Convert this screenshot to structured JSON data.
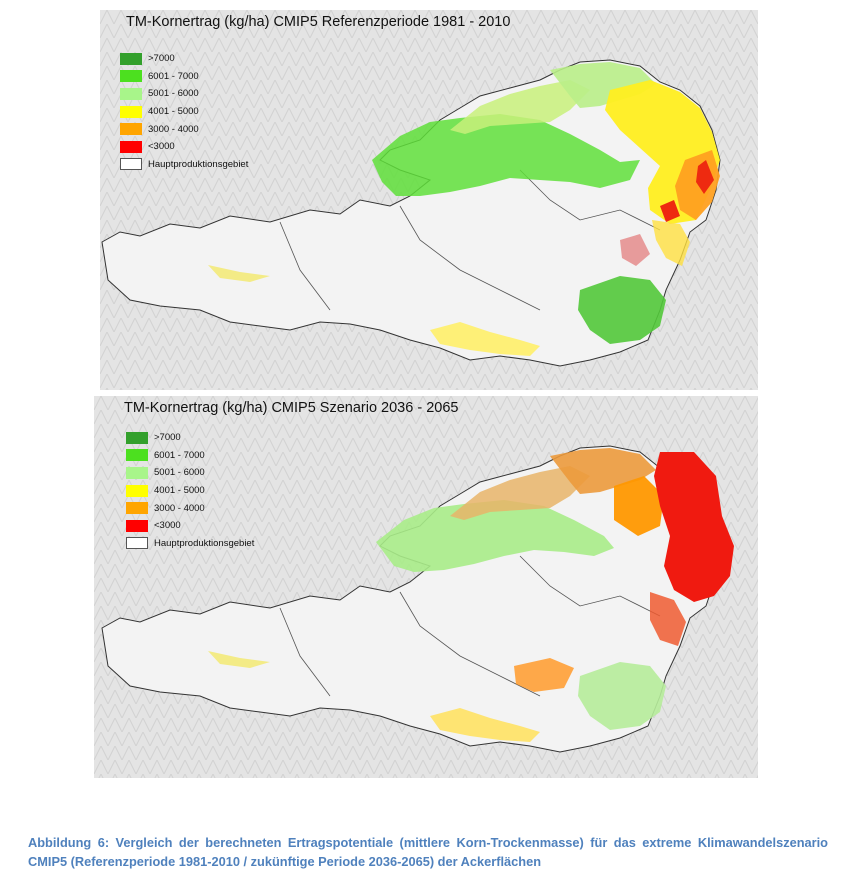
{
  "maps": [
    {
      "title": "TM-Kornertrag (kg/ha) CMIP5 Referenzperiode 1981 - 2010",
      "legend": [
        {
          "label": ">7000",
          "color": "#33a02c"
        },
        {
          "label": "6001 - 7000",
          "color": "#4ce01f"
        },
        {
          "label": "5001 - 6000",
          "color": "#a8f58a"
        },
        {
          "label": "4001 - 5000",
          "color": "#ffff00"
        },
        {
          "label": "3000 - 4000",
          "color": "#ffa500"
        },
        {
          "label": "<3000",
          "color": "#ff0000"
        },
        {
          "label": "Hauptproduktionsgebiet",
          "color": "#ffffff"
        }
      ]
    },
    {
      "title": "TM-Kornertrag (kg/ha) CMIP5 Szenario 2036 - 2065",
      "legend": [
        {
          "label": ">7000",
          "color": "#33a02c"
        },
        {
          "label": "6001 - 7000",
          "color": "#4ce01f"
        },
        {
          "label": "5001 - 6000",
          "color": "#a8f58a"
        },
        {
          "label": "4001 - 5000",
          "color": "#ffff00"
        },
        {
          "label": "3000 - 4000",
          "color": "#ffa500"
        },
        {
          "label": "<3000",
          "color": "#ff0000"
        },
        {
          "label": "Hauptproduktionsgebiet",
          "color": "#ffffff"
        }
      ]
    }
  ],
  "caption": "Abbildung 6: Vergleich der berechneten Ertragspotentiale (mittlere Korn-Trockenmasse) für das extreme Klimawandelszenario CMIP5 (Referenzperiode 1981-2010 / zukünftige Periode 2036-2065) der Ackerflächen"
}
